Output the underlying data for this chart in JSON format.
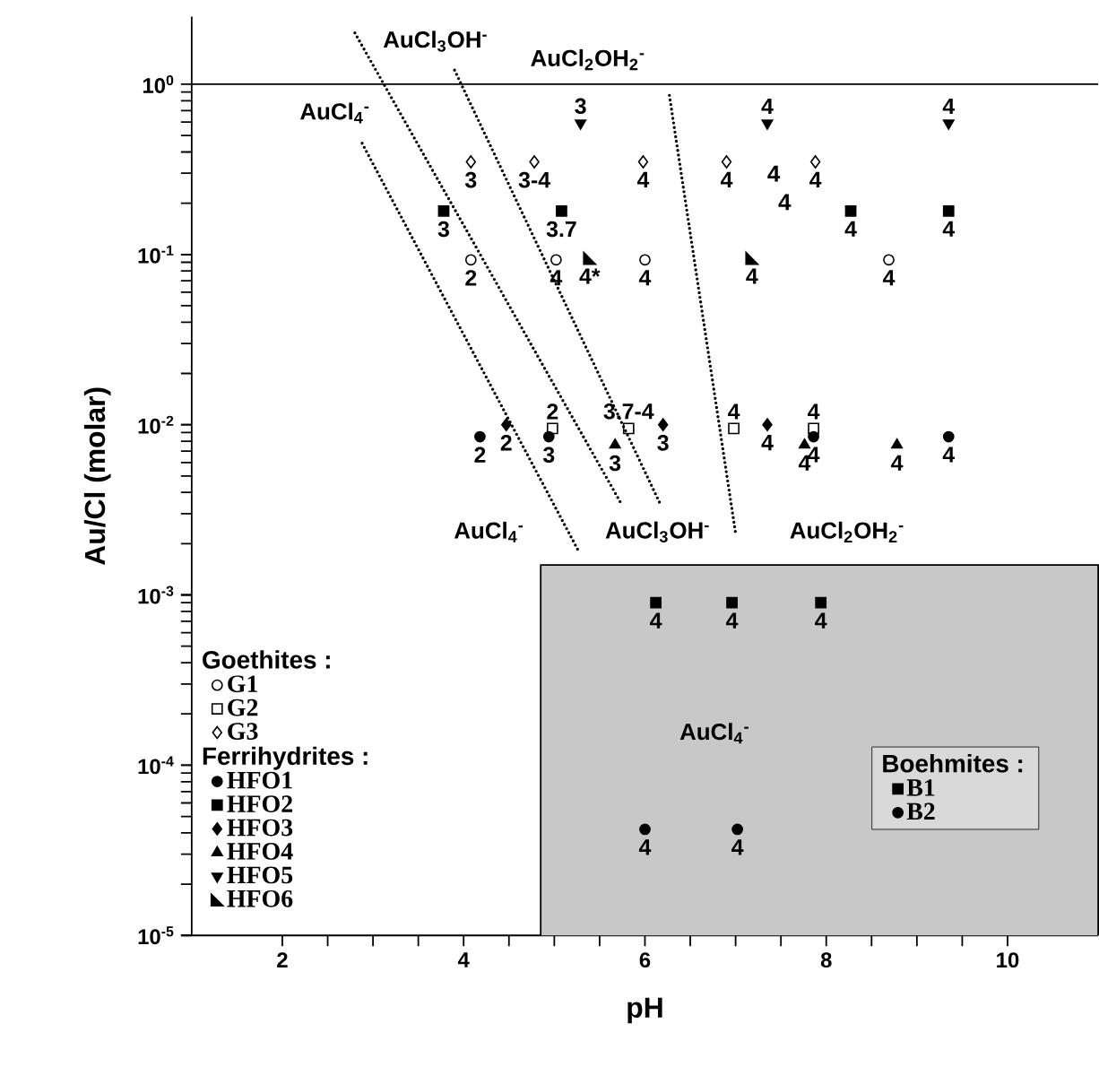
{
  "chart_data": {
    "type": "scatter",
    "xlabel": "pH",
    "ylabel": "Au/Cl (molar)",
    "log": "y",
    "xlim": [
      1,
      11
    ],
    "ylim": [
      1e-05,
      2.5
    ],
    "xticks": [
      2,
      4,
      6,
      8,
      10
    ],
    "yticks": [
      {
        "value": 1e-05,
        "label": "10$^{-5}$"
      },
      {
        "value": 0.0001,
        "label": "10$^{-4}$"
      },
      {
        "value": 0.001,
        "label": "10$^{-3}$"
      },
      {
        "value": 0.01,
        "label": "10$^{-2}$"
      },
      {
        "value": 0.1,
        "label": "10$^{-1}$"
      },
      {
        "value": 1,
        "label": "10$^{0}$"
      }
    ],
    "grid": false,
    "legend": "bottom left",
    "series": [
      {
        "name": "G1",
        "color": "#000000",
        "marker": "circle-open",
        "x": [
          4.08,
          5.02,
          6.0,
          8.69
        ],
        "values": [
          0.093,
          0.093,
          0.093,
          0.093
        ]
      },
      {
        "name": "G2",
        "color": "#000000",
        "marker": "square-open",
        "x": [
          4.98,
          5.82,
          6.98,
          7.86
        ],
        "values": [
          0.0095,
          0.0095,
          0.0095,
          0.0095
        ]
      },
      {
        "name": "G3",
        "color": "#000000",
        "marker": "diamond-open",
        "x": [
          4.08,
          4.78,
          5.98,
          6.9,
          7.88
        ],
        "values": [
          0.35,
          0.35,
          0.35,
          0.35,
          0.35
        ]
      },
      {
        "name": "HFO1",
        "color": "#000000",
        "marker": "circle",
        "x": [
          4.18,
          4.94,
          7.86,
          9.35
        ],
        "values": [
          0.0085,
          0.0085,
          0.0085,
          0.0085
        ]
      },
      {
        "name": "HFO2",
        "color": "#000000",
        "marker": "square",
        "x": [
          3.78,
          5.08,
          8.27,
          9.35
        ],
        "values": [
          0.18,
          0.18,
          0.18,
          0.18
        ]
      },
      {
        "name": "HFO3",
        "color": "#000000",
        "marker": "diamond",
        "x": [
          4.47,
          6.2,
          7.35
        ],
        "values": [
          0.01,
          0.01,
          0.01
        ]
      },
      {
        "name": "HFO4",
        "color": "#000000",
        "marker": "triangle",
        "x": [
          5.67,
          7.76,
          8.78
        ],
        "values": [
          0.0076,
          0.0076,
          0.0076
        ]
      },
      {
        "name": "HFO5",
        "color": "#000000",
        "marker": "triangle-down",
        "x": [
          5.29,
          7.35,
          9.35
        ],
        "values": [
          0.59,
          0.59,
          0.59
        ]
      },
      {
        "name": "HFO6",
        "color": "#000000",
        "marker": "triangle-corner",
        "x": [
          5.39,
          7.18
        ],
        "values": [
          0.095,
          0.095
        ]
      },
      {
        "name": "B1",
        "color": "#000000",
        "marker": "square",
        "x": [
          6.12,
          6.96,
          7.94
        ],
        "values": [
          0.0009,
          0.0009,
          0.0009
        ]
      },
      {
        "name": "B2",
        "color": "#000000",
        "marker": "circle",
        "x": [
          6.0,
          7.02
        ],
        "values": [
          4.2e-05,
          4.2e-05
        ]
      },
      {
        "type": "line",
        "color": "#000000",
        "marker": "none",
        "line_style": "dotted",
        "x": [
          2.88,
          5.27
        ],
        "values": [
          0.45,
          0.0018
        ]
      },
      {
        "type": "line",
        "color": "#000000",
        "marker": "none",
        "line_style": "dotted",
        "x": [
          2.8,
          5.73
        ],
        "values": [
          2.0,
          0.0035
        ]
      },
      {
        "type": "line",
        "color": "#000000",
        "marker": "none",
        "line_style": "dotted",
        "x": [
          3.9,
          6.16
        ],
        "values": [
          1.21,
          0.0035
        ]
      },
      {
        "type": "line",
        "color": "#000000",
        "marker": "none",
        "line_style": "dotted",
        "x": [
          6.27,
          7.0
        ],
        "values": [
          0.86,
          0.0023
        ]
      },
      {
        "type": "area",
        "color": "#c8c8c8",
        "x": [
          4.85,
          11
        ],
        "values": [
          0.0015,
          0.0015
        ]
      }
    ],
    "ref_lines": [
      {
        "axis": "y",
        "value": 1,
        "color": "#000000"
      }
    ],
    "annotations": [
      "Goethites :",
      "Ferrihydrites :",
      "Boehmites :",
      "AuCl$_{4}$$^{-}$",
      "AuCl$_{3}$OH$^{-}$",
      "AuCl$_{2}$OH$_{2}$$^{-}$",
      "AuCl$_{4}$$^{-}$",
      "AuCl$_{3}$OH$^{-}$",
      "AuCl$_{2}$OH$_{2}$$^{-}$",
      "AuCl$_{4}$$^{-}$",
      "4",
      "4",
      {
        "text": "3",
        "x": 5.29,
        "y": 0.59
      },
      {
        "text": "4",
        "x": 7.35,
        "y": 0.59
      },
      {
        "text": "4",
        "x": 9.35,
        "y": 0.59
      },
      {
        "text": "2",
        "x": 4.98,
        "y": 0.0095
      },
      {
        "text": "3.7-4",
        "x": 5.82,
        "y": 0.0095
      },
      {
        "text": "4",
        "x": 6.98,
        "y": 0.0095
      },
      {
        "text": "4",
        "x": 7.86,
        "y": 0.0095
      },
      {
        "text": "2",
        "x": 4.08,
        "y": 0.093
      },
      {
        "text": "4",
        "x": 5.02,
        "y": 0.093
      },
      {
        "text": "4",
        "x": 6.0,
        "y": 0.093
      },
      {
        "text": "4",
        "x": 8.69,
        "y": 0.093
      },
      {
        "text": "3",
        "x": 4.08,
        "y": 0.35
      },
      {
        "text": "3-4",
        "x": 4.78,
        "y": 0.35
      },
      {
        "text": "4",
        "x": 5.98,
        "y": 0.35
      },
      {
        "text": "4",
        "x": 6.9,
        "y": 0.35
      },
      {
        "text": "4",
        "x": 7.88,
        "y": 0.35
      },
      {
        "text": "2",
        "x": 4.18,
        "y": 0.0085
      },
      {
        "text": "3",
        "x": 4.94,
        "y": 0.0085
      },
      {
        "text": "4",
        "x": 7.86,
        "y": 0.0085
      },
      {
        "text": "4",
        "x": 9.35,
        "y": 0.0085
      },
      {
        "text": "3",
        "x": 3.78,
        "y": 0.18
      },
      {
        "text": "3.7",
        "x": 5.08,
        "y": 0.18
      },
      {
        "text": "4",
        "x": 8.27,
        "y": 0.18
      },
      {
        "text": "4",
        "x": 9.35,
        "y": 0.18
      },
      {
        "text": "2",
        "x": 4.47,
        "y": 0.01
      },
      {
        "text": "3",
        "x": 6.2,
        "y": 0.01
      },
      {
        "text": "4",
        "x": 7.35,
        "y": 0.01
      },
      {
        "text": "3",
        "x": 5.67,
        "y": 0.0076
      },
      {
        "text": "4",
        "x": 7.76,
        "y": 0.0076
      },
      {
        "text": "4",
        "x": 8.78,
        "y": 0.0076
      },
      {
        "text": "4*",
        "x": 5.39,
        "y": 0.095
      },
      {
        "text": "4",
        "x": 7.18,
        "y": 0.095
      },
      {
        "text": "4",
        "x": 6.12,
        "y": 0.0009
      },
      {
        "text": "4",
        "x": 6.96,
        "y": 0.0009
      },
      {
        "text": "4",
        "x": 7.94,
        "y": 0.0009
      },
      {
        "text": "4",
        "x": 6.0,
        "y": 4.2e-05
      },
      {
        "text": "4",
        "x": 7.02,
        "y": 4.2e-05
      }
    ]
  }
}
